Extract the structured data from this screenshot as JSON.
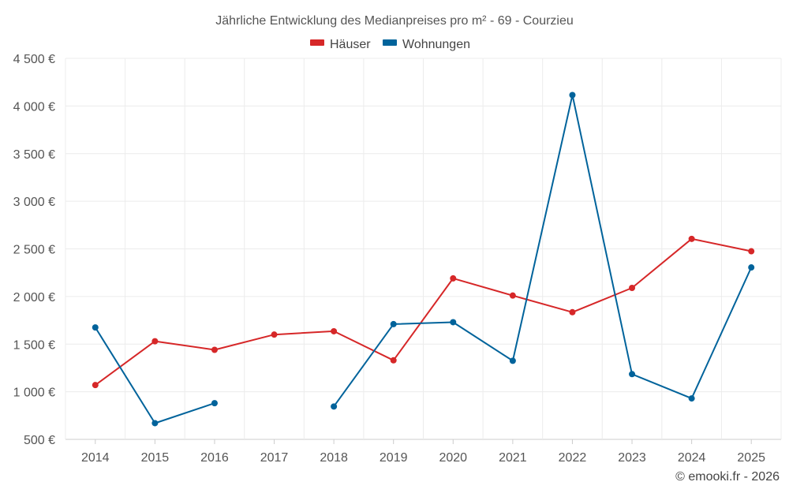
{
  "chart_data": {
    "type": "line",
    "title": "Jährliche Entwicklung des Medianpreises pro m² - 69 - Courzieu",
    "categories": [
      "2014",
      "2015",
      "2016",
      "2017",
      "2018",
      "2019",
      "2020",
      "2021",
      "2022",
      "2023",
      "2024",
      "2025"
    ],
    "series": [
      {
        "name": "Häuser",
        "color": "#d62728",
        "values": [
          1070,
          1530,
          1440,
          1600,
          1635,
          1330,
          2190,
          2010,
          1835,
          2090,
          2605,
          2475
        ]
      },
      {
        "name": "Wohnungen",
        "color": "#00639b",
        "values": [
          1675,
          670,
          880,
          null,
          845,
          1710,
          1730,
          1325,
          4115,
          1185,
          930,
          2305
        ]
      }
    ],
    "yticks": [
      "4 500 €",
      "4 000 €",
      "3 500 €",
      "3 000 €",
      "2 500 €",
      "2 000 €",
      "1 500 €",
      "1 000 €",
      "500 €"
    ],
    "ylim": [
      500,
      4500
    ],
    "ylabel": "",
    "xlabel": "",
    "legend_position": "top-center",
    "grid": true
  },
  "credit": "© emooki.fr - 2026"
}
